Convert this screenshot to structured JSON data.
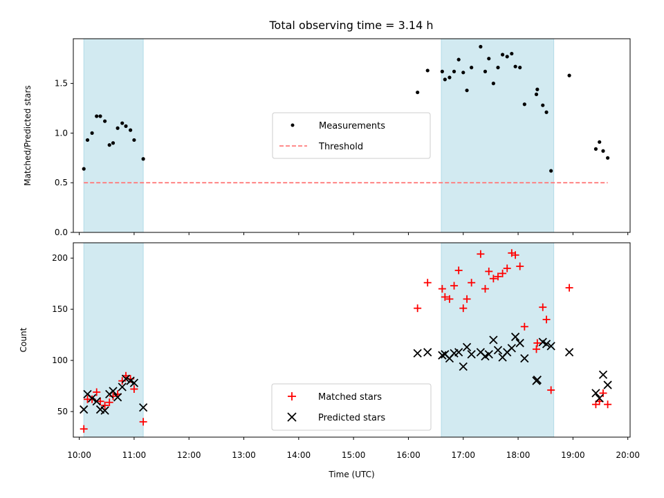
{
  "chart_data": [
    {
      "type": "scatter",
      "title": "Total observing time = 3.14 h",
      "xlabel": "",
      "ylabel": "Matched/Predicted stars",
      "xlim": [
        "10:00",
        "20:00"
      ],
      "ylim": [
        0,
        1.95
      ],
      "yticks": [
        0.0,
        0.5,
        1.0,
        1.5
      ],
      "yticklabels": [
        "0.0",
        "0.5",
        "1.0",
        "1.5"
      ],
      "shaded_intervals": [
        [
          "10:05",
          "11:10"
        ],
        [
          "16:36",
          "18:39"
        ]
      ],
      "shade_color": "#add8e6",
      "legend": {
        "position": "center",
        "entries": [
          "Measurements",
          "Threshold"
        ]
      },
      "series": [
        {
          "name": "Measurements",
          "marker": "dot",
          "color": "#000000",
          "points": [
            [
              "10:05",
              0.64
            ],
            [
              "10:09",
              0.93
            ],
            [
              "10:14",
              1.0
            ],
            [
              "10:19",
              1.17
            ],
            [
              "10:23",
              1.17
            ],
            [
              "10:28",
              1.12
            ],
            [
              "10:33",
              0.88
            ],
            [
              "10:37",
              0.9
            ],
            [
              "10:42",
              1.05
            ],
            [
              "10:47",
              1.1
            ],
            [
              "10:51",
              1.07
            ],
            [
              "10:56",
              1.03
            ],
            [
              "11:00",
              0.93
            ],
            [
              "11:10",
              0.74
            ],
            [
              "16:10",
              1.41
            ],
            [
              "16:21",
              1.63
            ],
            [
              "16:37",
              1.62
            ],
            [
              "16:40",
              1.54
            ],
            [
              "16:45",
              1.56
            ],
            [
              "16:50",
              1.62
            ],
            [
              "16:55",
              1.74
            ],
            [
              "17:00",
              1.61
            ],
            [
              "17:04",
              1.43
            ],
            [
              "17:09",
              1.66
            ],
            [
              "17:19",
              1.87
            ],
            [
              "17:24",
              1.62
            ],
            [
              "17:28",
              1.75
            ],
            [
              "17:33",
              1.5
            ],
            [
              "17:38",
              1.66
            ],
            [
              "17:43",
              1.79
            ],
            [
              "17:48",
              1.77
            ],
            [
              "17:53",
              1.8
            ],
            [
              "17:57",
              1.67
            ],
            [
              "18:02",
              1.66
            ],
            [
              "18:07",
              1.29
            ],
            [
              "18:20",
              1.39
            ],
            [
              "18:21",
              1.44
            ],
            [
              "18:27",
              1.28
            ],
            [
              "18:31",
              1.21
            ],
            [
              "18:36",
              0.62
            ],
            [
              "18:56",
              1.58
            ],
            [
              "19:25",
              0.84
            ],
            [
              "19:29",
              0.91
            ],
            [
              "19:33",
              0.82
            ],
            [
              "19:38",
              0.75
            ]
          ]
        },
        {
          "name": "Threshold",
          "marker": "dashed-line",
          "color": "#ff7b7b",
          "points": [
            [
              "10:05",
              0.5
            ],
            [
              "19:38",
              0.5
            ]
          ]
        }
      ]
    },
    {
      "type": "scatter",
      "title": "",
      "xlabel": "Time (UTC)",
      "ylabel": "Count",
      "xlim": [
        "10:00",
        "20:00"
      ],
      "ylim": [
        25,
        215
      ],
      "yticks": [
        50,
        100,
        150,
        200
      ],
      "yticklabels": [
        "50",
        "100",
        "150",
        "200"
      ],
      "xticks": [
        "10:00",
        "11:00",
        "12:00",
        "13:00",
        "14:00",
        "15:00",
        "16:00",
        "17:00",
        "18:00",
        "19:00",
        "20:00"
      ],
      "xticklabels": [
        "10:00",
        "11:00",
        "12:00",
        "13:00",
        "14:00",
        "15:00",
        "16:00",
        "17:00",
        "18:00",
        "19:00",
        "20:00"
      ],
      "shaded_intervals": [
        [
          "10:05",
          "11:10"
        ],
        [
          "16:36",
          "18:39"
        ]
      ],
      "shade_color": "#add8e6",
      "legend": {
        "position": "lower center",
        "entries": [
          "Matched stars",
          "Predicted stars"
        ]
      },
      "series": [
        {
          "name": "Matched stars",
          "marker": "plus",
          "color": "#ff0000",
          "points": [
            [
              "10:05",
              33
            ],
            [
              "10:09",
              62
            ],
            [
              "10:14",
              62
            ],
            [
              "10:19",
              69
            ],
            [
              "10:23",
              60
            ],
            [
              "10:28",
              56
            ],
            [
              "10:33",
              59
            ],
            [
              "10:37",
              65
            ],
            [
              "10:42",
              67
            ],
            [
              "10:47",
              80
            ],
            [
              "10:51",
              85
            ],
            [
              "10:56",
              82
            ],
            [
              "11:00",
              72
            ],
            [
              "11:10",
              40
            ],
            [
              "16:10",
              151
            ],
            [
              "16:21",
              176
            ],
            [
              "16:37",
              170
            ],
            [
              "16:40",
              162
            ],
            [
              "16:45",
              160
            ],
            [
              "16:50",
              173
            ],
            [
              "16:55",
              188
            ],
            [
              "17:00",
              151
            ],
            [
              "17:04",
              160
            ],
            [
              "17:09",
              176
            ],
            [
              "17:19",
              204
            ],
            [
              "17:24",
              170
            ],
            [
              "17:28",
              187
            ],
            [
              "17:33",
              180
            ],
            [
              "17:38",
              182
            ],
            [
              "17:43",
              185
            ],
            [
              "17:48",
              190
            ],
            [
              "17:53",
              205
            ],
            [
              "17:57",
              203
            ],
            [
              "18:02",
              192
            ],
            [
              "18:07",
              133
            ],
            [
              "18:20",
              111
            ],
            [
              "18:21",
              117
            ],
            [
              "18:27",
              152
            ],
            [
              "18:31",
              140
            ],
            [
              "18:36",
              71
            ],
            [
              "18:56",
              171
            ],
            [
              "19:25",
              57
            ],
            [
              "19:29",
              60
            ],
            [
              "19:33",
              68
            ],
            [
              "19:38",
              57
            ]
          ]
        },
        {
          "name": "Predicted stars",
          "marker": "x",
          "color": "#000000",
          "points": [
            [
              "10:05",
              52
            ],
            [
              "10:09",
              67
            ],
            [
              "10:14",
              63
            ],
            [
              "10:19",
              60
            ],
            [
              "10:23",
              52
            ],
            [
              "10:28",
              51
            ],
            [
              "10:33",
              67
            ],
            [
              "10:37",
              70
            ],
            [
              "10:42",
              64
            ],
            [
              "10:47",
              74
            ],
            [
              "10:51",
              82
            ],
            [
              "10:56",
              80
            ],
            [
              "11:00",
              78
            ],
            [
              "11:10",
              54
            ],
            [
              "16:10",
              107
            ],
            [
              "16:21",
              108
            ],
            [
              "16:37",
              105
            ],
            [
              "16:40",
              106
            ],
            [
              "16:45",
              102
            ],
            [
              "16:50",
              107
            ],
            [
              "16:55",
              108
            ],
            [
              "17:00",
              94
            ],
            [
              "17:04",
              113
            ],
            [
              "17:09",
              106
            ],
            [
              "17:19",
              108
            ],
            [
              "17:24",
              104
            ],
            [
              "17:28",
              106
            ],
            [
              "17:33",
              120
            ],
            [
              "17:38",
              110
            ],
            [
              "17:43",
              103
            ],
            [
              "17:48",
              108
            ],
            [
              "17:53",
              112
            ],
            [
              "17:57",
              123
            ],
            [
              "18:02",
              117
            ],
            [
              "18:07",
              102
            ],
            [
              "18:20",
              80
            ],
            [
              "18:21",
              81
            ],
            [
              "18:27",
              118
            ],
            [
              "18:31",
              116
            ],
            [
              "18:36",
              114
            ],
            [
              "18:56",
              108
            ],
            [
              "19:25",
              68
            ],
            [
              "19:29",
              63
            ],
            [
              "19:33",
              86
            ],
            [
              "19:38",
              76
            ]
          ]
        }
      ]
    }
  ]
}
